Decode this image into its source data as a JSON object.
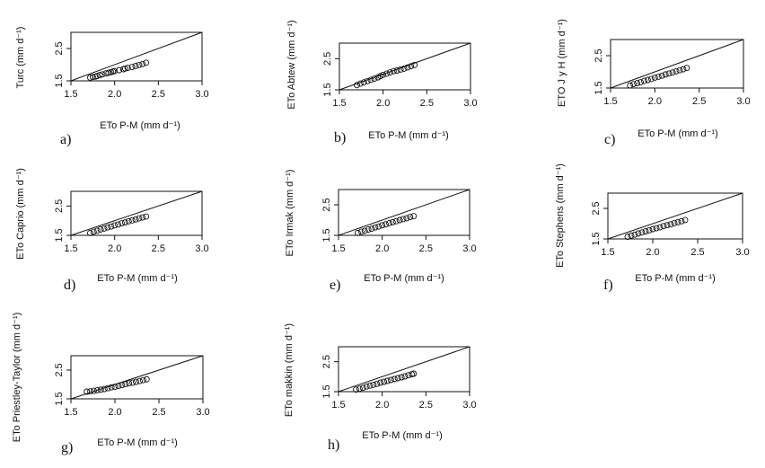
{
  "chart_data": [
    {
      "type": "scatter",
      "panel_letter": "a)",
      "xlabel": "ETo P-M (mm d⁻¹)",
      "ylabel": "Turc (mm d⁻¹)",
      "xlim": [
        1.5,
        3.0
      ],
      "ylim": [
        1.5,
        3.0
      ],
      "x_ticks": [
        "1.5",
        "2.0",
        "2.5",
        "3.0"
      ],
      "y_ticks": [
        "1.5",
        "2.5"
      ],
      "reference_line": "1:1",
      "points": [
        [
          1.72,
          1.6
        ],
        [
          1.75,
          1.62
        ],
        [
          1.78,
          1.63
        ],
        [
          1.8,
          1.65
        ],
        [
          1.83,
          1.68
        ],
        [
          1.86,
          1.7
        ],
        [
          1.9,
          1.73
        ],
        [
          1.93,
          1.75
        ],
        [
          1.96,
          1.77
        ],
        [
          1.98,
          1.79
        ],
        [
          2.0,
          1.8
        ],
        [
          2.05,
          1.83
        ],
        [
          2.1,
          1.86
        ],
        [
          2.12,
          1.88
        ],
        [
          2.15,
          1.9
        ],
        [
          2.2,
          1.93
        ],
        [
          2.24,
          1.96
        ],
        [
          2.28,
          1.99
        ],
        [
          2.32,
          2.02
        ],
        [
          2.36,
          2.06
        ]
      ]
    },
    {
      "type": "scatter",
      "panel_letter": "b)",
      "xlabel": "ETo P-M (mm d⁻¹)",
      "ylabel": "ETo Abtew (mm d⁻¹)",
      "xlim": [
        1.5,
        3.0
      ],
      "ylim": [
        1.5,
        3.0
      ],
      "x_ticks": [
        "1.5",
        "2.0",
        "2.5",
        "3.0"
      ],
      "y_ticks": [
        "1.5",
        "2.5"
      ],
      "reference_line": "1:1",
      "points": [
        [
          1.7,
          1.65
        ],
        [
          1.74,
          1.7
        ],
        [
          1.78,
          1.74
        ],
        [
          1.82,
          1.78
        ],
        [
          1.86,
          1.82
        ],
        [
          1.9,
          1.86
        ],
        [
          1.94,
          1.9
        ],
        [
          1.97,
          1.94
        ],
        [
          2.0,
          1.98
        ],
        [
          2.04,
          2.02
        ],
        [
          2.08,
          2.06
        ],
        [
          2.12,
          2.1
        ],
        [
          2.16,
          2.12
        ],
        [
          2.2,
          2.15
        ],
        [
          2.24,
          2.18
        ],
        [
          2.28,
          2.22
        ],
        [
          2.32,
          2.26
        ],
        [
          2.36,
          2.3
        ]
      ]
    },
    {
      "type": "scatter",
      "panel_letter": "c)",
      "xlabel": "ETo P-M (mm d⁻¹)",
      "ylabel": "ETO J y H (mm d⁻¹)",
      "xlim": [
        1.5,
        3.0
      ],
      "ylim": [
        1.5,
        3.0
      ],
      "x_ticks": [
        "1.5",
        "2.0",
        "2.5",
        "3.0"
      ],
      "y_ticks": [
        "1.5",
        "2.5"
      ],
      "reference_line": "1:1",
      "points": [
        [
          1.72,
          1.58
        ],
        [
          1.76,
          1.62
        ],
        [
          1.8,
          1.65
        ],
        [
          1.84,
          1.68
        ],
        [
          1.88,
          1.72
        ],
        [
          1.92,
          1.75
        ],
        [
          1.96,
          1.78
        ],
        [
          2.0,
          1.82
        ],
        [
          2.04,
          1.85
        ],
        [
          2.08,
          1.88
        ],
        [
          2.12,
          1.92
        ],
        [
          2.16,
          1.95
        ],
        [
          2.2,
          1.98
        ],
        [
          2.24,
          2.02
        ],
        [
          2.28,
          2.05
        ],
        [
          2.32,
          2.08
        ],
        [
          2.36,
          2.12
        ]
      ]
    },
    {
      "type": "scatter",
      "panel_letter": "d)",
      "xlabel": "ETo P-M (mm d⁻¹)",
      "ylabel": "ETo Caprio (mm d⁻¹)",
      "xlim": [
        1.5,
        3.0
      ],
      "ylim": [
        1.5,
        3.0
      ],
      "x_ticks": [
        "1.5",
        "2.0",
        "2.5",
        "3.0"
      ],
      "y_ticks": [
        "1.5",
        "2.5"
      ],
      "reference_line": "1:1",
      "points": [
        [
          1.72,
          1.58
        ],
        [
          1.76,
          1.62
        ],
        [
          1.8,
          1.66
        ],
        [
          1.84,
          1.7
        ],
        [
          1.88,
          1.73
        ],
        [
          1.92,
          1.77
        ],
        [
          1.96,
          1.8
        ],
        [
          2.0,
          1.84
        ],
        [
          2.04,
          1.87
        ],
        [
          2.08,
          1.91
        ],
        [
          2.12,
          1.94
        ],
        [
          2.16,
          1.98
        ],
        [
          2.2,
          2.01
        ],
        [
          2.24,
          2.04
        ],
        [
          2.28,
          2.08
        ],
        [
          2.32,
          2.11
        ],
        [
          2.36,
          2.14
        ]
      ]
    },
    {
      "type": "scatter",
      "panel_letter": "e)",
      "xlabel": "ETo P-M (mm d⁻¹)",
      "ylabel": "ETo Irmak (mm d⁻¹)",
      "xlim": [
        1.5,
        3.0
      ],
      "ylim": [
        1.5,
        3.0
      ],
      "x_ticks": [
        "1.5",
        "2.0",
        "2.5",
        "3.0"
      ],
      "y_ticks": [
        "1.5",
        "2.5"
      ],
      "reference_line": "1:1",
      "points": [
        [
          1.72,
          1.58
        ],
        [
          1.76,
          1.62
        ],
        [
          1.8,
          1.65
        ],
        [
          1.84,
          1.69
        ],
        [
          1.88,
          1.72
        ],
        [
          1.92,
          1.76
        ],
        [
          1.96,
          1.79
        ],
        [
          2.0,
          1.83
        ],
        [
          2.04,
          1.86
        ],
        [
          2.08,
          1.9
        ],
        [
          2.12,
          1.93
        ],
        [
          2.16,
          1.96
        ],
        [
          2.2,
          2.0
        ],
        [
          2.24,
          2.03
        ],
        [
          2.28,
          2.06
        ],
        [
          2.32,
          2.1
        ],
        [
          2.36,
          2.13
        ]
      ]
    },
    {
      "type": "scatter",
      "panel_letter": "f)",
      "xlabel": "ETo P-M (mm d⁻¹)",
      "ylabel": "ETo Stephens (mm d⁻¹)",
      "xlim": [
        1.5,
        3.0
      ],
      "ylim": [
        1.5,
        3.0
      ],
      "x_ticks": [
        "1.5",
        "2.0",
        "2.5",
        "3.0"
      ],
      "y_ticks": [
        "1.5",
        "2.5"
      ],
      "reference_line": "1:1",
      "points": [
        [
          1.72,
          1.57
        ],
        [
          1.76,
          1.61
        ],
        [
          1.8,
          1.64
        ],
        [
          1.84,
          1.68
        ],
        [
          1.88,
          1.71
        ],
        [
          1.92,
          1.75
        ],
        [
          1.96,
          1.78
        ],
        [
          2.0,
          1.82
        ],
        [
          2.04,
          1.85
        ],
        [
          2.08,
          1.88
        ],
        [
          2.12,
          1.92
        ],
        [
          2.16,
          1.95
        ],
        [
          2.2,
          1.98
        ],
        [
          2.24,
          2.02
        ],
        [
          2.28,
          2.05
        ],
        [
          2.32,
          2.08
        ],
        [
          2.36,
          2.12
        ]
      ]
    },
    {
      "type": "scatter",
      "panel_letter": "g)",
      "xlabel": "ETo P-M (mm d⁻¹)",
      "ylabel": "ETo Priestley-Taylor (mm d⁻¹)",
      "xlim": [
        1.5,
        3.0
      ],
      "ylim": [
        1.5,
        3.0
      ],
      "x_ticks": [
        "1.5",
        "2.0",
        "2.5",
        "3.0"
      ],
      "y_ticks": [
        "1.5",
        "2.5"
      ],
      "reference_line": "1:1",
      "points": [
        [
          1.68,
          1.75
        ],
        [
          1.72,
          1.76
        ],
        [
          1.76,
          1.78
        ],
        [
          1.8,
          1.8
        ],
        [
          1.84,
          1.82
        ],
        [
          1.88,
          1.84
        ],
        [
          1.92,
          1.87
        ],
        [
          1.96,
          1.9
        ],
        [
          2.0,
          1.92
        ],
        [
          2.04,
          1.95
        ],
        [
          2.08,
          1.98
        ],
        [
          2.12,
          2.01
        ],
        [
          2.16,
          2.04
        ],
        [
          2.2,
          2.06
        ],
        [
          2.24,
          2.09
        ],
        [
          2.28,
          2.12
        ],
        [
          2.32,
          2.15
        ],
        [
          2.36,
          2.18
        ]
      ]
    },
    {
      "type": "scatter",
      "panel_letter": "h)",
      "xlabel": "ETo P-M (mm d⁻¹)",
      "ylabel": "ETo makkin (mm d⁻¹)",
      "xlim": [
        1.5,
        3.0
      ],
      "ylim": [
        1.5,
        3.0
      ],
      "x_ticks": [
        "1.5",
        "2.0",
        "2.5",
        "3.0"
      ],
      "y_ticks": [
        "1.5",
        "2.5"
      ],
      "reference_line": "1:1",
      "points": [
        [
          1.7,
          1.57
        ],
        [
          1.74,
          1.6
        ],
        [
          1.78,
          1.63
        ],
        [
          1.82,
          1.67
        ],
        [
          1.86,
          1.7
        ],
        [
          1.9,
          1.73
        ],
        [
          1.94,
          1.76
        ],
        [
          1.98,
          1.8
        ],
        [
          2.02,
          1.83
        ],
        [
          2.06,
          1.86
        ],
        [
          2.1,
          1.89
        ],
        [
          2.14,
          1.92
        ],
        [
          2.18,
          1.95
        ],
        [
          2.22,
          1.98
        ],
        [
          2.26,
          2.01
        ],
        [
          2.3,
          2.05
        ],
        [
          2.34,
          2.08
        ],
        [
          2.36,
          2.1
        ]
      ]
    }
  ],
  "colors": {
    "ink": "#111111",
    "background": "#ffffff"
  }
}
